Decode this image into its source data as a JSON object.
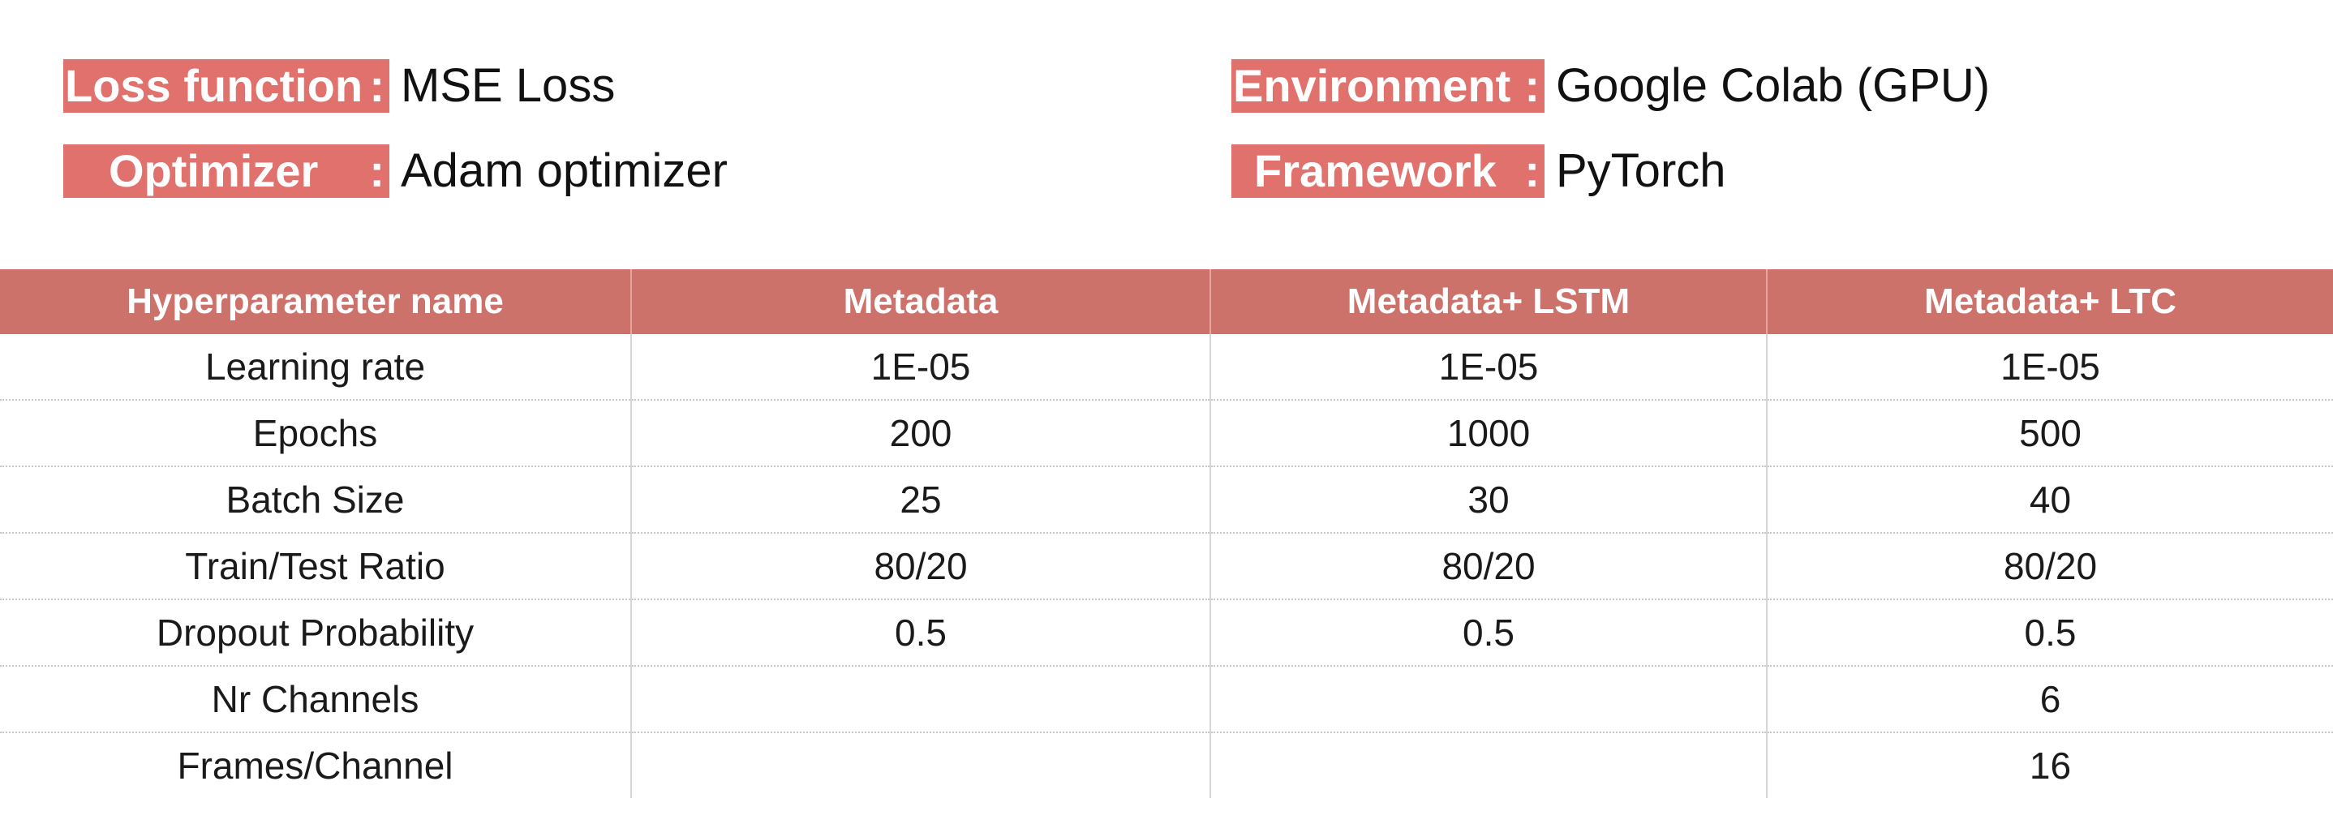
{
  "settings": {
    "loss": {
      "label": "Loss function",
      "colon": ":",
      "value": "MSE Loss"
    },
    "optimizer": {
      "label": "Optimizer",
      "colon": ":",
      "value": "Adam optimizer"
    },
    "environment": {
      "label": "Environment",
      "colon": ":",
      "value": "Google Colab (GPU)"
    },
    "framework": {
      "label": "Framework",
      "colon": ":",
      "value": "PyTorch"
    }
  },
  "table": {
    "headers": [
      "Hyperparameter name",
      "Metadata",
      "Metadata+ LSTM",
      "Metadata+ LTC"
    ],
    "rows": [
      [
        "Learning rate",
        "1E-05",
        "1E-05",
        "1E-05"
      ],
      [
        "Epochs",
        "200",
        "1000",
        "500"
      ],
      [
        "Batch Size",
        "25",
        "30",
        "40"
      ],
      [
        "Train/Test Ratio",
        "80/20",
        "80/20",
        "80/20"
      ],
      [
        "Dropout Probability",
        "0.5",
        "0.5",
        "0.5"
      ],
      [
        "Nr Channels",
        "",
        "",
        "6"
      ],
      [
        "Frames/Channel",
        "",
        "",
        "16"
      ]
    ]
  },
  "colors": {
    "label_background": "#e0716c",
    "header_background": "#cd716b",
    "label_text": "#ffffff"
  }
}
